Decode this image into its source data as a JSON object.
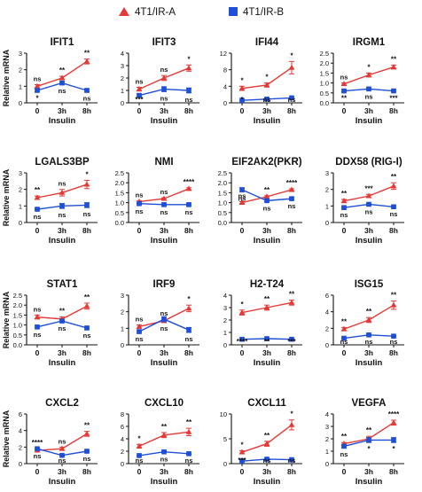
{
  "legend": {
    "items": [
      {
        "label": "4T1/IR-A",
        "color": "#e53935",
        "marker": "triangle"
      },
      {
        "label": "4T1/IR-B",
        "color": "#1e4fd8",
        "marker": "square"
      }
    ]
  },
  "chart_data": [
    {
      "type": "line",
      "title": "IFIT1",
      "ylabel": "Relative mRNA",
      "xlabel": "Insulin",
      "categories": [
        "0",
        "3h",
        "8h"
      ],
      "ylim": [
        0,
        3
      ],
      "yticks": [
        0,
        1,
        2,
        3
      ],
      "series": [
        {
          "name": "4T1/IR-A",
          "color": "#e53935",
          "values": [
            1.0,
            1.5,
            2.5
          ],
          "errors": [
            0.1,
            0.1,
            0.15
          ],
          "sig_above": [
            "ns",
            "**",
            "**"
          ]
        },
        {
          "name": "4T1/IR-B",
          "color": "#1e4fd8",
          "values": [
            0.75,
            1.2,
            0.75
          ],
          "errors": [
            0.08,
            0.08,
            0.08
          ],
          "sig_below": [
            "*",
            "ns",
            "ns"
          ]
        }
      ]
    },
    {
      "type": "line",
      "title": "IFIT3",
      "ylabel": "",
      "xlabel": "Insulin",
      "categories": [
        "0",
        "3h",
        "8h"
      ],
      "ylim": [
        0,
        4
      ],
      "yticks": [
        0,
        1,
        2,
        3,
        4
      ],
      "series": [
        {
          "name": "4T1/IR-A",
          "color": "#e53935",
          "values": [
            1.1,
            2.0,
            2.8
          ],
          "errors": [
            0.15,
            0.2,
            0.25
          ],
          "sig_above": [
            "ns",
            "ns",
            "*"
          ]
        },
        {
          "name": "4T1/IR-B",
          "color": "#1e4fd8",
          "values": [
            0.6,
            1.1,
            1.0
          ],
          "errors": [
            0.1,
            0.2,
            0.2
          ],
          "sig_below": [
            "***",
            "ns",
            "ns"
          ]
        }
      ]
    },
    {
      "type": "line",
      "title": "IFI44",
      "ylabel": "",
      "xlabel": "Insulin",
      "categories": [
        "0",
        "3h",
        "8h"
      ],
      "ylim": [
        0,
        12
      ],
      "yticks": [
        0,
        4,
        8,
        12
      ],
      "series": [
        {
          "name": "4T1/IR-A",
          "color": "#e53935",
          "values": [
            3.5,
            4.3,
            8.5
          ],
          "errors": [
            0.5,
            0.5,
            1.5
          ],
          "sig_above": [
            "*",
            "*",
            "*"
          ]
        },
        {
          "name": "4T1/IR-B",
          "color": "#1e4fd8",
          "values": [
            0.6,
            0.9,
            1.2
          ],
          "errors": [
            0.2,
            0.2,
            0.2
          ],
          "sig_below": [
            "*",
            "ns",
            "ns"
          ]
        }
      ]
    },
    {
      "type": "line",
      "title": "IRGM1",
      "ylabel": "",
      "xlabel": "Insulin",
      "categories": [
        "0",
        "3h",
        "8h"
      ],
      "ylim": [
        0,
        2.5
      ],
      "yticks": [
        0.0,
        0.5,
        1.0,
        1.5,
        2.0,
        2.5
      ],
      "series": [
        {
          "name": "4T1/IR-A",
          "color": "#e53935",
          "values": [
            0.95,
            1.4,
            1.8
          ],
          "errors": [
            0.05,
            0.1,
            0.1
          ],
          "sig_above": [
            "ns",
            "*",
            "**"
          ]
        },
        {
          "name": "4T1/IR-B",
          "color": "#1e4fd8",
          "values": [
            0.6,
            0.7,
            0.6
          ],
          "errors": [
            0.05,
            0.05,
            0.05
          ],
          "sig_below": [
            "**",
            "ns",
            "***"
          ]
        }
      ]
    },
    {
      "type": "line",
      "title": "LGALS3BP",
      "ylabel": "Relative mRNA",
      "xlabel": "Insulin",
      "categories": [
        "0",
        "3h",
        "8h"
      ],
      "ylim": [
        0,
        3
      ],
      "yticks": [
        0,
        1,
        2,
        3
      ],
      "series": [
        {
          "name": "4T1/IR-A",
          "color": "#e53935",
          "values": [
            1.5,
            1.8,
            2.3
          ],
          "errors": [
            0.1,
            0.2,
            0.25
          ],
          "sig_above": [
            "**",
            "ns",
            "*"
          ]
        },
        {
          "name": "4T1/IR-B",
          "color": "#1e4fd8",
          "values": [
            0.8,
            1.0,
            1.05
          ],
          "errors": [
            0.05,
            0.15,
            0.15
          ],
          "sig_below": [
            "ns",
            "ns",
            "ns"
          ]
        }
      ]
    },
    {
      "type": "line",
      "title": "NMI",
      "ylabel": "",
      "xlabel": "Insulin",
      "categories": [
        "0",
        "3h",
        "8h"
      ],
      "ylim": [
        0,
        2.5
      ],
      "yticks": [
        0.0,
        0.5,
        1.0,
        1.5,
        2.0,
        2.5
      ],
      "series": [
        {
          "name": "4T1/IR-A",
          "color": "#e53935",
          "values": [
            1.05,
            1.2,
            1.7
          ],
          "errors": [
            0.05,
            0.05,
            0.05
          ],
          "sig_above": [
            "ns",
            "ns",
            "****"
          ]
        },
        {
          "name": "4T1/IR-B",
          "color": "#1e4fd8",
          "values": [
            0.95,
            0.9,
            0.9
          ],
          "errors": [
            0.05,
            0.05,
            0.05
          ],
          "sig_below": [
            "ns",
            "ns",
            "ns"
          ]
        }
      ]
    },
    {
      "type": "line",
      "title": "EIF2AK2(PKR)",
      "ylabel": "",
      "xlabel": "Insulin",
      "categories": [
        "0",
        "3h",
        "8h"
      ],
      "ylim": [
        0,
        2.5
      ],
      "yticks": [
        0.0,
        0.5,
        1.0,
        1.5,
        2.0,
        2.5
      ],
      "series": [
        {
          "name": "4T1/IR-A",
          "color": "#e53935",
          "values": [
            1.0,
            1.3,
            1.65
          ],
          "errors": [
            0.05,
            0.05,
            0.05
          ],
          "sig_above": [
            "ns",
            "**",
            "****"
          ]
        },
        {
          "name": "4T1/IR-B",
          "color": "#1e4fd8",
          "values": [
            1.65,
            1.1,
            1.2
          ],
          "errors": [
            0.1,
            0.05,
            0.05
          ],
          "sig_below": [
            "ns",
            "ns",
            "ns"
          ]
        }
      ]
    },
    {
      "type": "line",
      "title": "DDX58 (RIG-I)",
      "ylabel": "",
      "xlabel": "Insulin",
      "categories": [
        "0",
        "3h",
        "8h"
      ],
      "ylim": [
        0,
        3
      ],
      "yticks": [
        0,
        1,
        2,
        3
      ],
      "series": [
        {
          "name": "4T1/IR-A",
          "color": "#e53935",
          "values": [
            1.3,
            1.6,
            2.2
          ],
          "errors": [
            0.1,
            0.1,
            0.2
          ],
          "sig_above": [
            "**",
            "***",
            "**"
          ]
        },
        {
          "name": "4T1/IR-B",
          "color": "#1e4fd8",
          "values": [
            0.9,
            1.1,
            0.95
          ],
          "errors": [
            0.05,
            0.05,
            0.05
          ],
          "sig_below": [
            "ns",
            "ns",
            "ns"
          ]
        }
      ]
    },
    {
      "type": "line",
      "title": "STAT1",
      "ylabel": "Relative mRNA",
      "xlabel": "Insulin",
      "categories": [
        "0",
        "3h",
        "8h"
      ],
      "ylim": [
        0,
        2.5
      ],
      "yticks": [
        0.0,
        0.5,
        1.0,
        1.5,
        2.0,
        2.5
      ],
      "series": [
        {
          "name": "4T1/IR-A",
          "color": "#e53935",
          "values": [
            1.4,
            1.3,
            1.95
          ],
          "errors": [
            0.1,
            0.1,
            0.15
          ],
          "sig_above": [
            "ns",
            "**",
            "**"
          ]
        },
        {
          "name": "4T1/IR-B",
          "color": "#1e4fd8",
          "values": [
            0.9,
            1.2,
            0.85
          ],
          "errors": [
            0.05,
            0.05,
            0.05
          ],
          "sig_below": [
            "ns",
            "ns",
            "ns"
          ]
        }
      ]
    },
    {
      "type": "line",
      "title": "IRF9",
      "ylabel": "",
      "xlabel": "Insulin",
      "categories": [
        "0",
        "3h",
        "8h"
      ],
      "ylim": [
        0,
        3
      ],
      "yticks": [
        0,
        1,
        2,
        3
      ],
      "series": [
        {
          "name": "4T1/IR-A",
          "color": "#e53935",
          "values": [
            1.1,
            1.45,
            2.2
          ],
          "errors": [
            0.1,
            0.1,
            0.2
          ],
          "sig_above": [
            "ns",
            "ns",
            "*"
          ]
        },
        {
          "name": "4T1/IR-B",
          "color": "#1e4fd8",
          "values": [
            0.8,
            1.55,
            0.9
          ],
          "errors": [
            0.05,
            0.15,
            0.15
          ],
          "sig_below": [
            "ns",
            "ns",
            "ns"
          ]
        }
      ]
    },
    {
      "type": "line",
      "title": "H2-T24",
      "ylabel": "",
      "xlabel": "Insulin",
      "categories": [
        "0",
        "3h",
        "8h"
      ],
      "ylim": [
        0,
        4
      ],
      "yticks": [
        0,
        1,
        2,
        3,
        4
      ],
      "series": [
        {
          "name": "4T1/IR-A",
          "color": "#e53935",
          "values": [
            2.6,
            3.0,
            3.4
          ],
          "errors": [
            0.2,
            0.2,
            0.2
          ],
          "sig_above": [
            "*",
            "**",
            "**"
          ]
        },
        {
          "name": "4T1/IR-B",
          "color": "#1e4fd8",
          "values": [
            0.45,
            0.5,
            0.45
          ],
          "errors": [
            0.03,
            0.03,
            0.03
          ],
          "sig_below": [
            "****",
            "**",
            "***"
          ]
        }
      ]
    },
    {
      "type": "line",
      "title": "ISG15",
      "ylabel": "",
      "xlabel": "Insulin",
      "categories": [
        "0",
        "3h",
        "8h"
      ],
      "ylim": [
        0,
        6
      ],
      "yticks": [
        0,
        2,
        4,
        6
      ],
      "series": [
        {
          "name": "4T1/IR-A",
          "color": "#e53935",
          "values": [
            1.9,
            3.0,
            4.8
          ],
          "errors": [
            0.2,
            0.3,
            0.5
          ],
          "sig_above": [
            "**",
            "**",
            "**"
          ]
        },
        {
          "name": "4T1/IR-B",
          "color": "#1e4fd8",
          "values": [
            0.8,
            1.2,
            1.05
          ],
          "errors": [
            0.05,
            0.1,
            0.05
          ],
          "sig_below": [
            "ns",
            "ns",
            "ns"
          ]
        }
      ]
    },
    {
      "type": "line",
      "title": "CXCL2",
      "ylabel": "Relative mRNA",
      "xlabel": "Insulin",
      "categories": [
        "0",
        "3h",
        "8h"
      ],
      "ylim": [
        0,
        6
      ],
      "yticks": [
        0,
        2,
        4,
        6
      ],
      "series": [
        {
          "name": "4T1/IR-A",
          "color": "#e53935",
          "values": [
            1.6,
            1.8,
            3.6
          ],
          "errors": [
            0.2,
            0.2,
            0.3
          ],
          "sig_above": [
            "****",
            "ns",
            "**"
          ]
        },
        {
          "name": "4T1/IR-B",
          "color": "#1e4fd8",
          "values": [
            1.8,
            1.0,
            1.5
          ],
          "errors": [
            0.1,
            0.1,
            0.1
          ],
          "sig_below": [
            "ns",
            "ns",
            "ns"
          ]
        }
      ]
    },
    {
      "type": "line",
      "title": "CXCL10",
      "ylabel": "",
      "xlabel": "Insulin",
      "categories": [
        "0",
        "3h",
        "8h"
      ],
      "ylim": [
        0,
        8
      ],
      "yticks": [
        0,
        2,
        4,
        6,
        8
      ],
      "series": [
        {
          "name": "4T1/IR-A",
          "color": "#e53935",
          "values": [
            2.8,
            4.6,
            5.1
          ],
          "errors": [
            0.3,
            0.4,
            0.6
          ],
          "sig_above": [
            "*",
            "**",
            "**"
          ]
        },
        {
          "name": "4T1/IR-B",
          "color": "#1e4fd8",
          "values": [
            1.3,
            1.9,
            1.6
          ],
          "errors": [
            0.1,
            0.1,
            0.1
          ],
          "sig_below": [
            "ns",
            "ns",
            "ns"
          ]
        }
      ]
    },
    {
      "type": "line",
      "title": "CXCL11",
      "ylabel": "",
      "xlabel": "Insulin",
      "categories": [
        "0",
        "3h",
        "8h"
      ],
      "ylim": [
        0,
        10
      ],
      "yticks": [
        0,
        5,
        10
      ],
      "series": [
        {
          "name": "4T1/IR-A",
          "color": "#e53935",
          "values": [
            2.3,
            4.0,
            7.8
          ],
          "errors": [
            0.3,
            0.5,
            1.0
          ],
          "sig_above": [
            "*",
            "**",
            "*"
          ]
        },
        {
          "name": "4T1/IR-B",
          "color": "#1e4fd8",
          "values": [
            0.5,
            0.9,
            0.8
          ],
          "errors": [
            0.05,
            0.1,
            0.1
          ],
          "sig_below": [
            "***",
            "ns",
            "ns"
          ]
        }
      ]
    },
    {
      "type": "line",
      "title": "VEGFA",
      "ylabel": "",
      "xlabel": "Insulin",
      "categories": [
        "0",
        "3h",
        "8h"
      ],
      "ylim": [
        0,
        4
      ],
      "yticks": [
        0,
        1,
        2,
        3,
        4
      ],
      "series": [
        {
          "name": "4T1/IR-A",
          "color": "#e53935",
          "values": [
            1.6,
            2.0,
            3.3
          ],
          "errors": [
            0.1,
            0.2,
            0.2
          ],
          "sig_above": [
            "**",
            "**",
            "****"
          ]
        },
        {
          "name": "4T1/IR-B",
          "color": "#1e4fd8",
          "values": [
            1.4,
            1.9,
            1.9
          ],
          "errors": [
            0.1,
            0.2,
            0.2
          ],
          "sig_below": [
            "ns",
            "*",
            "*"
          ]
        }
      ]
    }
  ]
}
